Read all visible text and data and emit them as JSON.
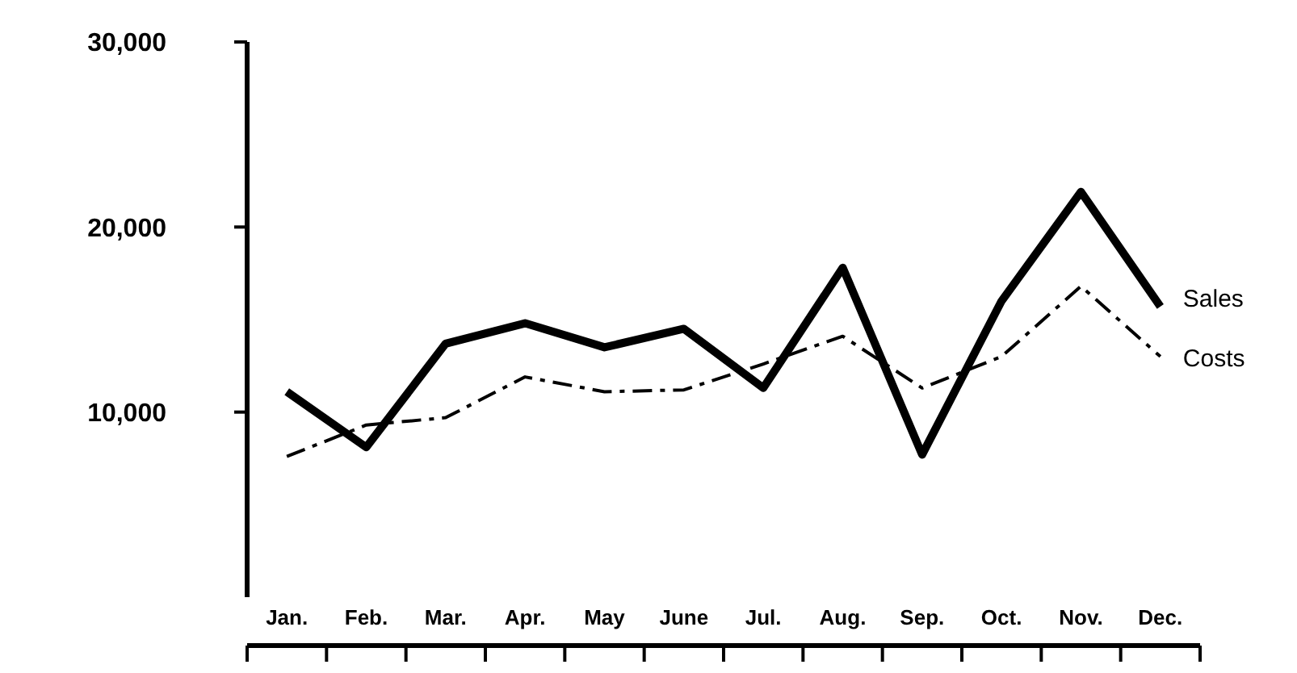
{
  "chart_data": {
    "type": "line",
    "categories": [
      "Jan.",
      "Feb.",
      "Mar.",
      "Apr.",
      "May",
      "June",
      "Jul.",
      "Aug.",
      "Sep.",
      "Oct.",
      "Nov.",
      "Dec."
    ],
    "series": [
      {
        "name": "Sales",
        "color": "#000000",
        "line_style": "solid",
        "values": [
          11100,
          8100,
          13700,
          14800,
          13500,
          14500,
          11300,
          17800,
          7700,
          16000,
          21900,
          15700
        ]
      },
      {
        "name": "Costs",
        "color": "#000000",
        "line_style": "dashed",
        "values": [
          7600,
          9300,
          9700,
          11900,
          11100,
          11200,
          12600,
          14100,
          11300,
          13000,
          16800,
          13000
        ]
      }
    ],
    "ylim": [
      0,
      30000
    ],
    "yticks": [
      {
        "value": 10000,
        "label": "10,000"
      },
      {
        "value": 20000,
        "label": "20,000"
      },
      {
        "value": 30000,
        "label": "30,000"
      }
    ],
    "grid": false,
    "legend": false,
    "marker": "none"
  }
}
